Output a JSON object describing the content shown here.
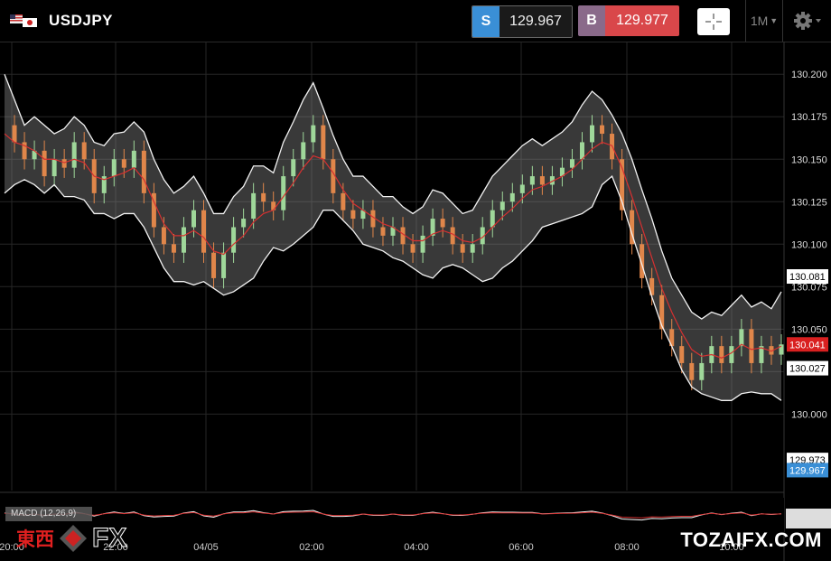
{
  "header": {
    "flag_icon": "us-jp-flag-icon",
    "symbol": "USDJPY",
    "sell": {
      "tag": "S",
      "price": "129.967"
    },
    "buy": {
      "tag": "B",
      "price": "129.977"
    },
    "timeframe": "1M",
    "icons": {
      "crosshair": "crosshair-icon",
      "settings": "gear-icon",
      "dropdown": "caret-down-icon"
    }
  },
  "chart_data": {
    "type": "line",
    "instrument": "USDJPY",
    "y_ticks": [
      "130.200",
      "130.175",
      "130.150",
      "130.125",
      "130.100",
      "130.075",
      "130.050",
      "130.025",
      "130.000"
    ],
    "ylim": [
      129.955,
      130.215
    ],
    "x_ticks": [
      "20:00",
      "22:00",
      "04/05",
      "02:00",
      "04:00",
      "06:00",
      "08:00",
      "10:00"
    ],
    "price_tags": [
      {
        "value": "130.081",
        "style": "white"
      },
      {
        "value": "130.041",
        "style": "red"
      },
      {
        "value": "130.027",
        "style": "white"
      },
      {
        "value": "129.973",
        "style": "white"
      },
      {
        "value": "129.967",
        "style": "blue"
      }
    ],
    "series": [
      {
        "name": "",
        "role": "close",
        "values": [
          130.17,
          130.16,
          130.15,
          130.155,
          130.14,
          130.15,
          130.145,
          130.16,
          130.15,
          130.13,
          130.14,
          130.15,
          130.145,
          130.155,
          130.13,
          130.11,
          130.1,
          130.095,
          130.11,
          130.12,
          130.095,
          130.08,
          130.095,
          130.11,
          130.115,
          130.13,
          130.125,
          130.12,
          130.14,
          130.15,
          130.16,
          130.17,
          130.15,
          130.13,
          130.12,
          130.115,
          130.12,
          130.11,
          130.105,
          130.11,
          130.1,
          130.095,
          130.105,
          130.115,
          130.11,
          130.1,
          130.095,
          130.1,
          130.11,
          130.12,
          130.125,
          130.13,
          130.135,
          130.14,
          130.135,
          130.14,
          130.145,
          130.15,
          130.16,
          130.17,
          130.165,
          130.15,
          130.12,
          130.1,
          130.08,
          130.07,
          130.05,
          130.04,
          130.03,
          130.02,
          130.03,
          130.04,
          130.03,
          130.04,
          130.05,
          130.03,
          130.04,
          130.035,
          130.041
        ]
      },
      {
        "name": "",
        "role": "moving-average",
        "color": "#d63030",
        "values": [
          130.165,
          130.16,
          130.158,
          130.155,
          130.15,
          130.15,
          130.148,
          130.15,
          130.148,
          130.14,
          130.138,
          130.14,
          130.142,
          130.145,
          130.138,
          130.125,
          130.112,
          130.105,
          130.105,
          130.108,
          130.104,
          130.096,
          130.094,
          130.1,
          130.105,
          130.113,
          130.118,
          130.12,
          130.128,
          130.136,
          130.145,
          130.152,
          130.15,
          130.142,
          130.132,
          130.124,
          130.12,
          130.116,
          130.112,
          130.11,
          130.106,
          130.102,
          130.102,
          130.106,
          130.108,
          130.106,
          130.102,
          130.101,
          130.104,
          130.11,
          130.116,
          130.121,
          130.127,
          130.132,
          130.134,
          130.137,
          130.14,
          130.144,
          130.15,
          130.156,
          130.16,
          130.158,
          130.145,
          130.128,
          130.11,
          130.092,
          130.074,
          130.06,
          130.048,
          130.038,
          130.034,
          130.035,
          130.033,
          130.036,
          130.041,
          130.038,
          130.039,
          130.037,
          130.04
        ]
      },
      {
        "name": "",
        "role": "band-upper",
        "values": [
          130.2,
          130.185,
          130.17,
          130.175,
          130.17,
          130.165,
          130.168,
          130.175,
          130.17,
          130.16,
          130.158,
          130.165,
          130.166,
          130.172,
          130.166,
          130.15,
          130.138,
          130.13,
          130.134,
          130.14,
          130.13,
          130.118,
          130.118,
          130.128,
          130.134,
          130.146,
          130.146,
          130.142,
          130.16,
          130.172,
          130.185,
          130.195,
          130.18,
          130.164,
          130.15,
          130.14,
          130.14,
          130.134,
          130.128,
          130.128,
          130.122,
          130.118,
          130.122,
          130.132,
          130.13,
          130.124,
          130.118,
          130.12,
          130.13,
          130.14,
          130.146,
          130.152,
          130.158,
          130.162,
          130.158,
          130.162,
          130.166,
          130.172,
          130.182,
          130.19,
          130.185,
          130.176,
          130.165,
          130.15,
          130.132,
          130.115,
          130.096,
          130.08,
          130.07,
          130.06,
          130.056,
          130.06,
          130.058,
          130.064,
          130.07,
          130.063,
          130.066,
          130.062,
          130.072
        ]
      },
      {
        "name": "",
        "role": "band-lower",
        "values": [
          130.13,
          130.135,
          130.138,
          130.135,
          130.13,
          130.135,
          130.128,
          130.128,
          130.126,
          130.118,
          130.118,
          130.115,
          130.118,
          130.118,
          130.11,
          130.098,
          130.086,
          130.078,
          130.078,
          130.076,
          130.078,
          130.074,
          130.07,
          130.072,
          130.076,
          130.08,
          130.09,
          130.098,
          130.096,
          130.1,
          130.105,
          130.11,
          130.12,
          130.12,
          130.114,
          130.108,
          130.1,
          130.098,
          130.096,
          130.092,
          130.09,
          130.086,
          130.082,
          130.08,
          130.086,
          130.088,
          130.086,
          130.082,
          130.078,
          130.08,
          130.086,
          130.09,
          130.096,
          130.102,
          130.11,
          130.112,
          130.114,
          130.116,
          130.118,
          130.122,
          130.135,
          130.14,
          130.125,
          130.106,
          130.088,
          130.069,
          130.052,
          130.04,
          130.026,
          130.016,
          130.012,
          130.01,
          130.008,
          130.008,
          130.012,
          130.013,
          130.012,
          130.012,
          130.008
        ]
      }
    ],
    "indicator": {
      "label": "MACD (12,26,9)",
      "macd_colors": [
        "#ffffff",
        "#d63030"
      ]
    }
  },
  "macd_legend": "MACD (12,26,9)",
  "watermark": {
    "logo_kanji": "東西",
    "logo_fx": "FX",
    "site": "TOZAIFX.COM"
  }
}
